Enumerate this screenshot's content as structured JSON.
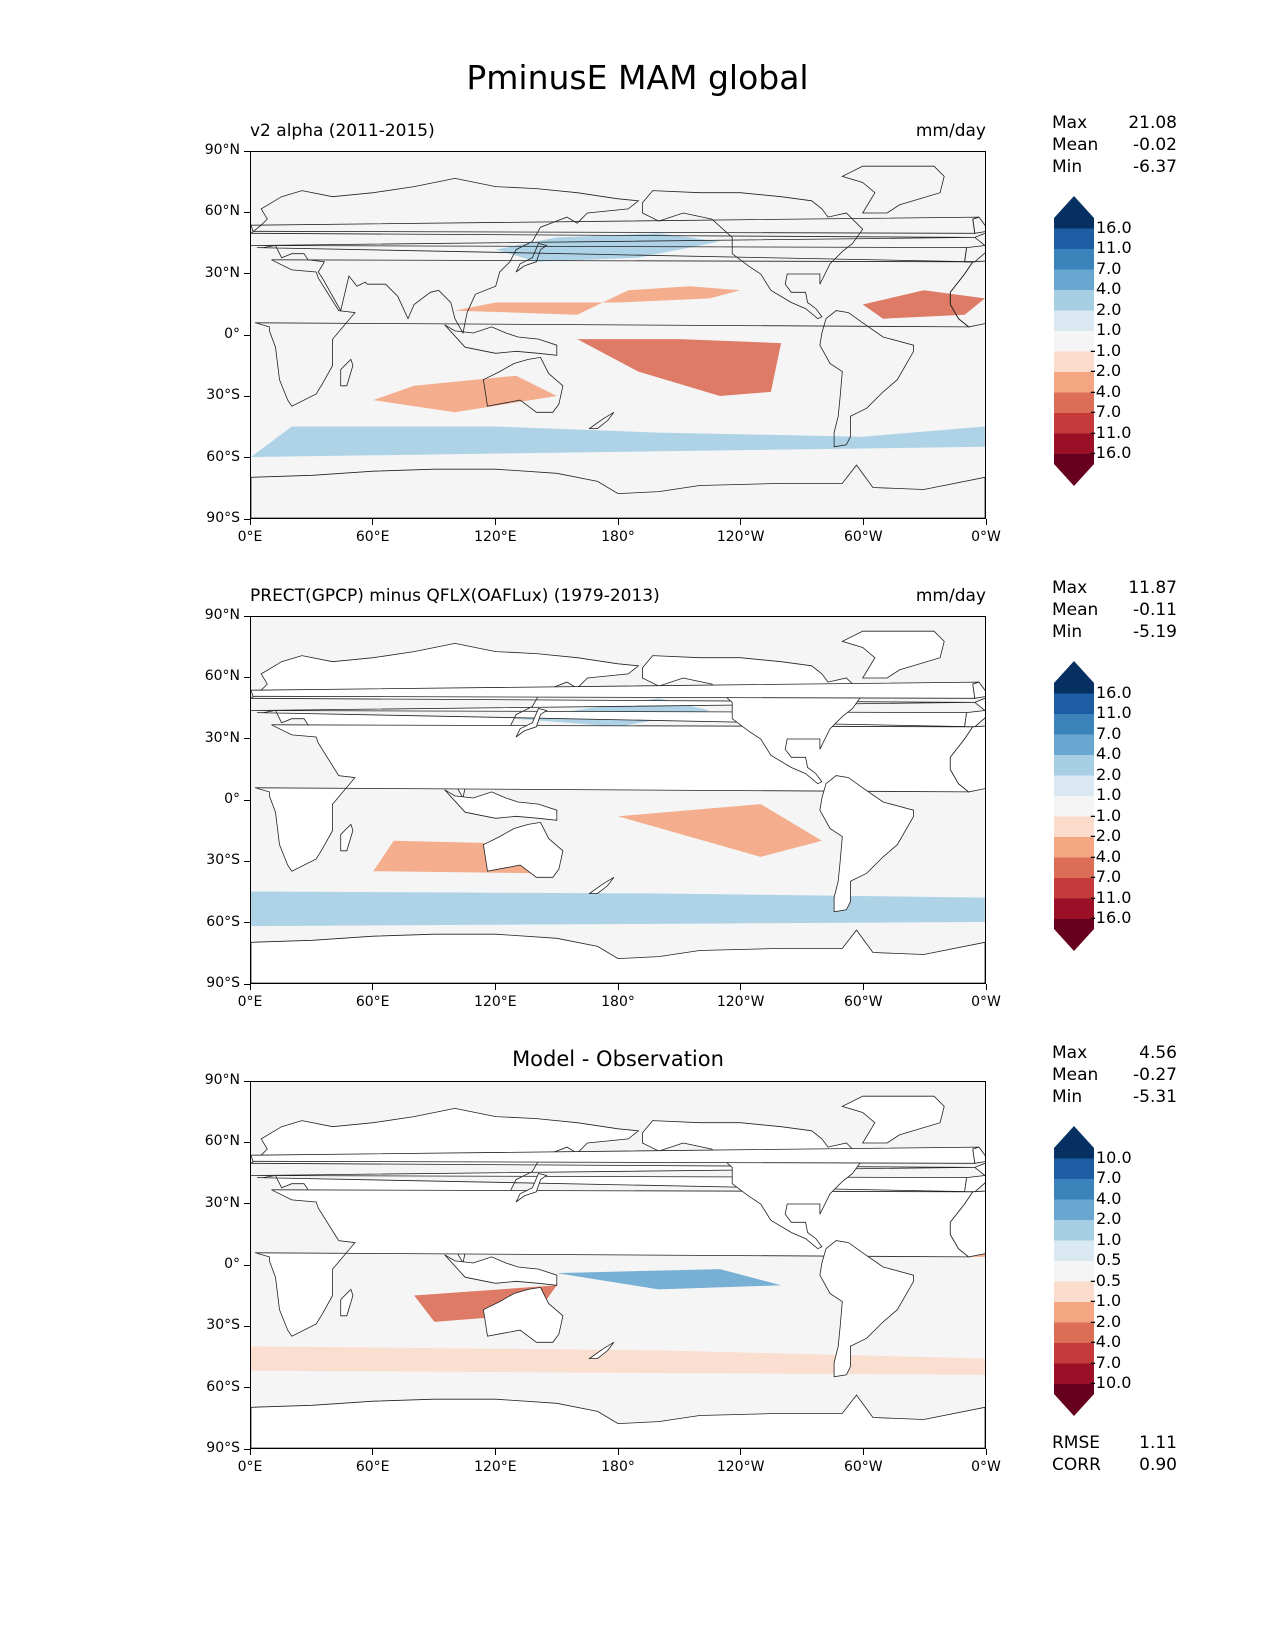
{
  "title": "PminusE MAM global",
  "colors": {
    "scale": [
      "#67001f",
      "#9a1026",
      "#c53b3b",
      "#dc6e57",
      "#f4a582",
      "#fbdccc",
      "#f5f5f5",
      "#d9e8f1",
      "#a7cfe4",
      "#6aa7d0",
      "#3b83bb",
      "#1c5da4",
      "#053061"
    ],
    "land": "#ffffff",
    "ocean_neutral": "#f5f5f5"
  },
  "x_ticks": [
    "0°E",
    "60°E",
    "120°E",
    "180°",
    "120°W",
    "60°W",
    "0°W"
  ],
  "y_ticks": [
    "90°N",
    "60°N",
    "30°N",
    "0°",
    "30°S",
    "60°S",
    "90°S"
  ],
  "panels": [
    {
      "left_title": "v2 alpha (2011-2015)",
      "center_title": "",
      "right_title": "mm/day",
      "stats": [
        {
          "label": "Max",
          "value": "21.08"
        },
        {
          "label": "Mean",
          "value": "-0.02"
        },
        {
          "label": "Min",
          "value": "-6.37"
        }
      ],
      "colorbar_levels": [
        "16.0",
        "11.0",
        "7.0",
        "4.0",
        "2.0",
        "1.0",
        "-1.0",
        "-2.0",
        "-4.0",
        "-7.0",
        "-11.0",
        "-16.0"
      ],
      "extra_stats": []
    },
    {
      "left_title": "PRECT(GPCP) minus QFLX(OAFLux) (1979-2013)",
      "center_title": "",
      "right_title": "mm/day",
      "stats": [
        {
          "label": "Max",
          "value": "11.87"
        },
        {
          "label": "Mean",
          "value": "-0.11"
        },
        {
          "label": "Min",
          "value": "-5.19"
        }
      ],
      "colorbar_levels": [
        "16.0",
        "11.0",
        "7.0",
        "4.0",
        "2.0",
        "1.0",
        "-1.0",
        "-2.0",
        "-4.0",
        "-7.0",
        "-11.0",
        "-16.0"
      ],
      "extra_stats": []
    },
    {
      "left_title": "",
      "center_title": "Model - Observation",
      "right_title": "",
      "stats": [
        {
          "label": "Max",
          "value": "4.56"
        },
        {
          "label": "Mean",
          "value": "-0.27"
        },
        {
          "label": "Min",
          "value": "-5.31"
        }
      ],
      "colorbar_levels": [
        "10.0",
        "7.0",
        "4.0",
        "2.0",
        "1.0",
        "0.5",
        "-0.5",
        "-1.0",
        "-2.0",
        "-4.0",
        "-7.0",
        "-10.0"
      ],
      "extra_stats": [
        {
          "label": "RMSE",
          "value": "1.11"
        },
        {
          "label": "CORR",
          "value": "0.90"
        }
      ]
    }
  ]
}
